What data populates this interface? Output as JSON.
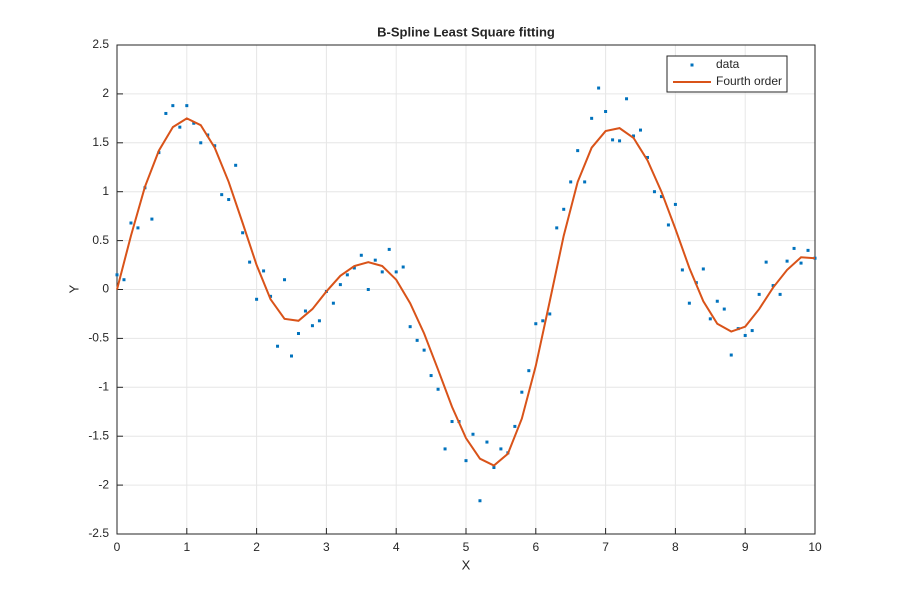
{
  "chart_data": {
    "type": "scatter-line",
    "title": "B-Spline Least Square fitting",
    "x_label": "X",
    "y_label": "Y",
    "xlim": [
      0,
      10
    ],
    "xticks": [
      0,
      1,
      2,
      3,
      4,
      5,
      6,
      7,
      8,
      9,
      10
    ],
    "ylim": [
      -2.5,
      2.5
    ],
    "yticks": [
      -2.5,
      -2,
      -1.5,
      -1,
      -0.5,
      0,
      0.5,
      1,
      1.5,
      2,
      2.5
    ],
    "grid": true,
    "legend": "top-right",
    "series": [
      {
        "name": "data",
        "style": "markers",
        "color": "#0072bd",
        "x": [
          0,
          0.1,
          0.2,
          0.3,
          0.4,
          0.5,
          0.6,
          0.7,
          0.8,
          0.9,
          1,
          1.1,
          1.2,
          1.3,
          1.4,
          1.5,
          1.6,
          1.7,
          1.8,
          1.9,
          2,
          2.1,
          2.2,
          2.3,
          2.4,
          2.5,
          2.6,
          2.7,
          2.8,
          2.9,
          3,
          3.1,
          3.2,
          3.3,
          3.4,
          3.5,
          3.6,
          3.7,
          3.8,
          3.9,
          4,
          4.1,
          4.2,
          4.3,
          4.4,
          4.5,
          4.6,
          4.7,
          4.8,
          4.9,
          5,
          5.1,
          5.2,
          5.3,
          5.4,
          5.5,
          5.6,
          5.7,
          5.8,
          5.9,
          6,
          6.1,
          6.2,
          6.3,
          6.4,
          6.5,
          6.6,
          6.7,
          6.8,
          6.9,
          7,
          7.1,
          7.2,
          7.3,
          7.4,
          7.5,
          7.6,
          7.7,
          7.8,
          7.9,
          8,
          8.1,
          8.2,
          8.3,
          8.4,
          8.5,
          8.6,
          8.7,
          8.8,
          8.9,
          9,
          9.1,
          9.2,
          9.3,
          9.4,
          9.5,
          9.6,
          9.7,
          9.8,
          9.9,
          10
        ],
        "values": [
          0.15,
          0.1,
          0.68,
          0.63,
          1.04,
          0.72,
          1.4,
          1.8,
          1.88,
          1.66,
          1.88,
          1.7,
          1.5,
          1.58,
          1.47,
          0.97,
          0.92,
          1.27,
          0.58,
          0.28,
          -0.1,
          0.19,
          -0.07,
          -0.58,
          0.1,
          -0.68,
          -0.45,
          -0.22,
          -0.37,
          -0.32,
          -0.02,
          -0.14,
          0.05,
          0.15,
          0.22,
          0.35,
          0.0,
          0.3,
          0.18,
          0.41,
          0.18,
          0.23,
          -0.38,
          -0.52,
          -0.62,
          -0.88,
          -1.02,
          -1.63,
          -1.35,
          -1.35,
          -1.75,
          -1.48,
          -2.16,
          -1.56,
          -1.82,
          -1.63,
          -1.67,
          -1.4,
          -1.05,
          -0.83,
          -0.35,
          -0.32,
          -0.25,
          0.63,
          0.82,
          1.1,
          1.42,
          1.1,
          1.75,
          2.06,
          1.82,
          1.53,
          1.52,
          1.95,
          1.57,
          1.63,
          1.35,
          1.0,
          0.95,
          0.66,
          0.87,
          0.2,
          -0.14,
          0.07,
          0.21,
          -0.3,
          -0.12,
          -0.2,
          -0.67,
          -0.4,
          -0.47,
          -0.42,
          -0.05,
          0.28,
          0.04,
          -0.05,
          0.29,
          0.42,
          0.27,
          0.4,
          0.32
        ]
      },
      {
        "name": "Fourth order",
        "style": "line",
        "color": "#d95319",
        "x": [
          0,
          0.2,
          0.4,
          0.6,
          0.8,
          1,
          1.2,
          1.4,
          1.6,
          1.8,
          2,
          2.2,
          2.4,
          2.6,
          2.8,
          3,
          3.2,
          3.4,
          3.6,
          3.8,
          4,
          4.2,
          4.4,
          4.6,
          4.8,
          5,
          5.2,
          5.4,
          5.6,
          5.8,
          6,
          6.2,
          6.4,
          6.6,
          6.8,
          7,
          7.2,
          7.4,
          7.6,
          7.8,
          8,
          8.2,
          8.4,
          8.6,
          8.8,
          9,
          9.2,
          9.4,
          9.6,
          9.8,
          10
        ],
        "values": [
          0,
          0.55,
          1.05,
          1.42,
          1.66,
          1.75,
          1.68,
          1.45,
          1.1,
          0.68,
          0.25,
          -0.1,
          -0.3,
          -0.32,
          -0.2,
          -0.02,
          0.14,
          0.24,
          0.28,
          0.24,
          0.1,
          -0.14,
          -0.45,
          -0.82,
          -1.2,
          -1.52,
          -1.73,
          -1.8,
          -1.68,
          -1.32,
          -0.78,
          -0.12,
          0.55,
          1.1,
          1.45,
          1.62,
          1.65,
          1.55,
          1.32,
          1.0,
          0.62,
          0.22,
          -0.12,
          -0.35,
          -0.43,
          -0.38,
          -0.2,
          0.02,
          0.2,
          0.33,
          0.32
        ]
      }
    ]
  }
}
